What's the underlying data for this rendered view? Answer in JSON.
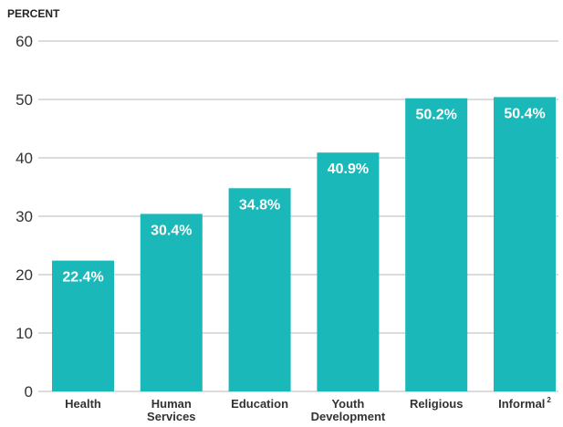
{
  "chart_data": {
    "type": "bar",
    "ylabel": "PERCENT",
    "ylim": [
      0,
      60
    ],
    "yticks": [
      0,
      10,
      20,
      30,
      40,
      50,
      60
    ],
    "grid": true,
    "categories": [
      {
        "lines": [
          "Health"
        ],
        "superscript": ""
      },
      {
        "lines": [
          "Human",
          "Services"
        ],
        "superscript": ""
      },
      {
        "lines": [
          "Education"
        ],
        "superscript": ""
      },
      {
        "lines": [
          "Youth",
          "Development"
        ],
        "superscript": ""
      },
      {
        "lines": [
          "Religious"
        ],
        "superscript": ""
      },
      {
        "lines": [
          "Informal"
        ],
        "superscript": "2"
      }
    ],
    "values": [
      22.4,
      30.4,
      34.8,
      40.9,
      50.2,
      50.4
    ],
    "data_labels": [
      "22.4%",
      "30.4%",
      "34.8%",
      "40.9%",
      "50.2%",
      "50.4%"
    ],
    "colors": {
      "bar": "#1ab8b8",
      "grid": "#b8b8b8",
      "text": "#333333",
      "label": "#ffffff"
    }
  }
}
